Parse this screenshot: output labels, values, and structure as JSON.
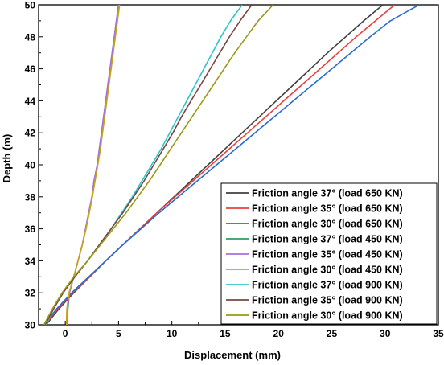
{
  "chart_data": {
    "type": "line",
    "xlabel": "Displacement (mm)",
    "ylabel": "Depth (m)",
    "xlim": [
      -2.5,
      35
    ],
    "ylim": [
      30,
      50
    ],
    "xticks": [
      0,
      5,
      10,
      15,
      20,
      25,
      30,
      35
    ],
    "yticks": [
      30,
      32,
      34,
      36,
      38,
      40,
      42,
      44,
      46,
      48,
      50
    ],
    "grid": false,
    "legend_position": "bottom-right",
    "series": [
      {
        "name": "Friction angle 37° (load 650 KN)",
        "color": "#404040",
        "points": [
          [
            -1.8,
            30
          ],
          [
            -0.6,
            31
          ],
          [
            0.8,
            32
          ],
          [
            2.3,
            33
          ],
          [
            3.8,
            34
          ],
          [
            5.4,
            35
          ],
          [
            7.0,
            36
          ],
          [
            8.6,
            37
          ],
          [
            10.2,
            38
          ],
          [
            11.8,
            39
          ],
          [
            13.4,
            40
          ],
          [
            15.0,
            41
          ],
          [
            16.6,
            42
          ],
          [
            18.2,
            43
          ],
          [
            19.8,
            44
          ],
          [
            21.4,
            45
          ],
          [
            23.0,
            46
          ],
          [
            24.6,
            47
          ],
          [
            26.3,
            48
          ],
          [
            28.0,
            49
          ],
          [
            29.8,
            50
          ]
        ]
      },
      {
        "name": "Friction angle 35° (load 650 KN)",
        "color": "#e8413c",
        "points": [
          [
            -1.9,
            30
          ],
          [
            -0.7,
            31
          ],
          [
            0.7,
            32
          ],
          [
            2.3,
            33
          ],
          [
            3.8,
            34
          ],
          [
            5.4,
            35
          ],
          [
            7.0,
            36
          ],
          [
            8.6,
            37
          ],
          [
            10.3,
            38
          ],
          [
            12.0,
            39
          ],
          [
            13.7,
            40
          ],
          [
            15.4,
            41
          ],
          [
            17.1,
            42
          ],
          [
            18.8,
            43
          ],
          [
            20.5,
            44
          ],
          [
            22.2,
            45
          ],
          [
            23.9,
            46
          ],
          [
            25.6,
            47
          ],
          [
            27.3,
            48
          ],
          [
            29.1,
            49
          ],
          [
            30.9,
            50
          ]
        ]
      },
      {
        "name": "Friction angle 30° (load 650 KN)",
        "color": "#2b6ccc",
        "points": [
          [
            -2.0,
            30
          ],
          [
            -0.8,
            31
          ],
          [
            0.6,
            32
          ],
          [
            2.2,
            33
          ],
          [
            3.8,
            34
          ],
          [
            5.4,
            35
          ],
          [
            7.1,
            36
          ],
          [
            8.8,
            37
          ],
          [
            10.6,
            38
          ],
          [
            12.4,
            39
          ],
          [
            14.2,
            40
          ],
          [
            16.0,
            41
          ],
          [
            17.8,
            42
          ],
          [
            19.6,
            43
          ],
          [
            21.4,
            44
          ],
          [
            23.2,
            45
          ],
          [
            25.0,
            46
          ],
          [
            26.8,
            47
          ],
          [
            28.6,
            48
          ],
          [
            30.5,
            49
          ],
          [
            33.2,
            50
          ]
        ]
      },
      {
        "name": "Friction angle 37° (load 450 KN)",
        "color": "#2e9e5a",
        "points": [
          [
            0.2,
            30
          ],
          [
            0.25,
            31
          ],
          [
            0.4,
            32
          ],
          [
            0.8,
            33
          ],
          [
            1.2,
            34
          ],
          [
            1.6,
            35
          ],
          [
            1.9,
            36
          ],
          [
            2.2,
            37
          ],
          [
            2.5,
            38
          ],
          [
            2.7,
            39
          ],
          [
            3.0,
            40
          ],
          [
            3.2,
            41
          ],
          [
            3.4,
            42
          ],
          [
            3.6,
            43
          ],
          [
            3.8,
            44
          ],
          [
            4.0,
            45
          ],
          [
            4.2,
            46
          ],
          [
            4.4,
            47
          ],
          [
            4.6,
            48
          ],
          [
            4.8,
            49
          ],
          [
            5.0,
            50
          ]
        ]
      },
      {
        "name": "Friction angle 35° (load 450 KN)",
        "color": "#a86ee0",
        "points": [
          [
            0.15,
            30
          ],
          [
            0.2,
            31
          ],
          [
            0.4,
            32
          ],
          [
            0.8,
            33
          ],
          [
            1.2,
            34
          ],
          [
            1.6,
            35
          ],
          [
            1.9,
            36
          ],
          [
            2.2,
            37
          ],
          [
            2.5,
            38
          ],
          [
            2.7,
            39
          ],
          [
            3.0,
            40
          ],
          [
            3.2,
            41
          ],
          [
            3.4,
            42
          ],
          [
            3.6,
            43
          ],
          [
            3.8,
            44
          ],
          [
            4.0,
            45
          ],
          [
            4.2,
            46
          ],
          [
            4.4,
            47
          ],
          [
            4.6,
            48
          ],
          [
            4.8,
            49
          ],
          [
            5.0,
            50
          ]
        ]
      },
      {
        "name": "Friction angle 30° (load 450 KN)",
        "color": "#c9a21c",
        "points": [
          [
            0.1,
            30
          ],
          [
            0.15,
            31
          ],
          [
            0.35,
            32
          ],
          [
            0.8,
            33
          ],
          [
            1.2,
            34
          ],
          [
            1.6,
            35
          ],
          [
            1.95,
            36
          ],
          [
            2.25,
            37
          ],
          [
            2.55,
            38
          ],
          [
            2.8,
            39
          ],
          [
            3.05,
            40
          ],
          [
            3.3,
            41
          ],
          [
            3.5,
            42
          ],
          [
            3.7,
            43
          ],
          [
            3.9,
            44
          ],
          [
            4.1,
            45
          ],
          [
            4.3,
            46
          ],
          [
            4.5,
            47
          ],
          [
            4.7,
            48
          ],
          [
            4.9,
            49
          ],
          [
            5.1,
            50
          ]
        ]
      },
      {
        "name": "Friction angle 37° (load 900 KN)",
        "color": "#2cc6c6",
        "points": [
          [
            -1.8,
            30
          ],
          [
            -1.1,
            31
          ],
          [
            -0.2,
            32
          ],
          [
            0.9,
            33
          ],
          [
            2.1,
            34
          ],
          [
            3.2,
            35
          ],
          [
            4.3,
            36
          ],
          [
            5.3,
            37
          ],
          [
            6.3,
            38
          ],
          [
            7.2,
            39
          ],
          [
            8.1,
            40
          ],
          [
            9.0,
            41
          ],
          [
            9.8,
            42
          ],
          [
            10.6,
            43
          ],
          [
            11.4,
            44
          ],
          [
            12.2,
            45
          ],
          [
            13.0,
            46
          ],
          [
            13.8,
            47
          ],
          [
            14.6,
            48
          ],
          [
            15.5,
            49
          ],
          [
            16.6,
            50
          ]
        ]
      },
      {
        "name": "Friction angle 35° (load 900 KN)",
        "color": "#7a4444",
        "points": [
          [
            -1.9,
            30
          ],
          [
            -1.1,
            31
          ],
          [
            -0.2,
            32
          ],
          [
            0.9,
            33
          ],
          [
            2.1,
            34
          ],
          [
            3.2,
            35
          ],
          [
            4.3,
            36
          ],
          [
            5.4,
            37
          ],
          [
            6.4,
            38
          ],
          [
            7.4,
            39
          ],
          [
            8.3,
            40
          ],
          [
            9.2,
            41
          ],
          [
            10.1,
            42
          ],
          [
            10.9,
            43
          ],
          [
            11.8,
            44
          ],
          [
            12.7,
            45
          ],
          [
            13.6,
            46
          ],
          [
            14.5,
            47
          ],
          [
            15.4,
            48
          ],
          [
            16.4,
            49
          ],
          [
            17.5,
            50
          ]
        ]
      },
      {
        "name": "Friction angle 30° (load 900 KN)",
        "color": "#9a9a1a",
        "points": [
          [
            -2.0,
            30
          ],
          [
            -1.2,
            31
          ],
          [
            -0.3,
            32
          ],
          [
            0.8,
            33
          ],
          [
            2.1,
            34
          ],
          [
            3.3,
            35
          ],
          [
            4.5,
            36
          ],
          [
            5.7,
            37
          ],
          [
            6.8,
            38
          ],
          [
            7.9,
            39
          ],
          [
            8.9,
            40
          ],
          [
            9.9,
            41
          ],
          [
            10.9,
            42
          ],
          [
            11.9,
            43
          ],
          [
            12.9,
            44
          ],
          [
            13.9,
            45
          ],
          [
            14.9,
            46
          ],
          [
            15.9,
            47
          ],
          [
            17.0,
            48
          ],
          [
            18.1,
            49
          ],
          [
            19.5,
            50
          ]
        ]
      }
    ]
  }
}
